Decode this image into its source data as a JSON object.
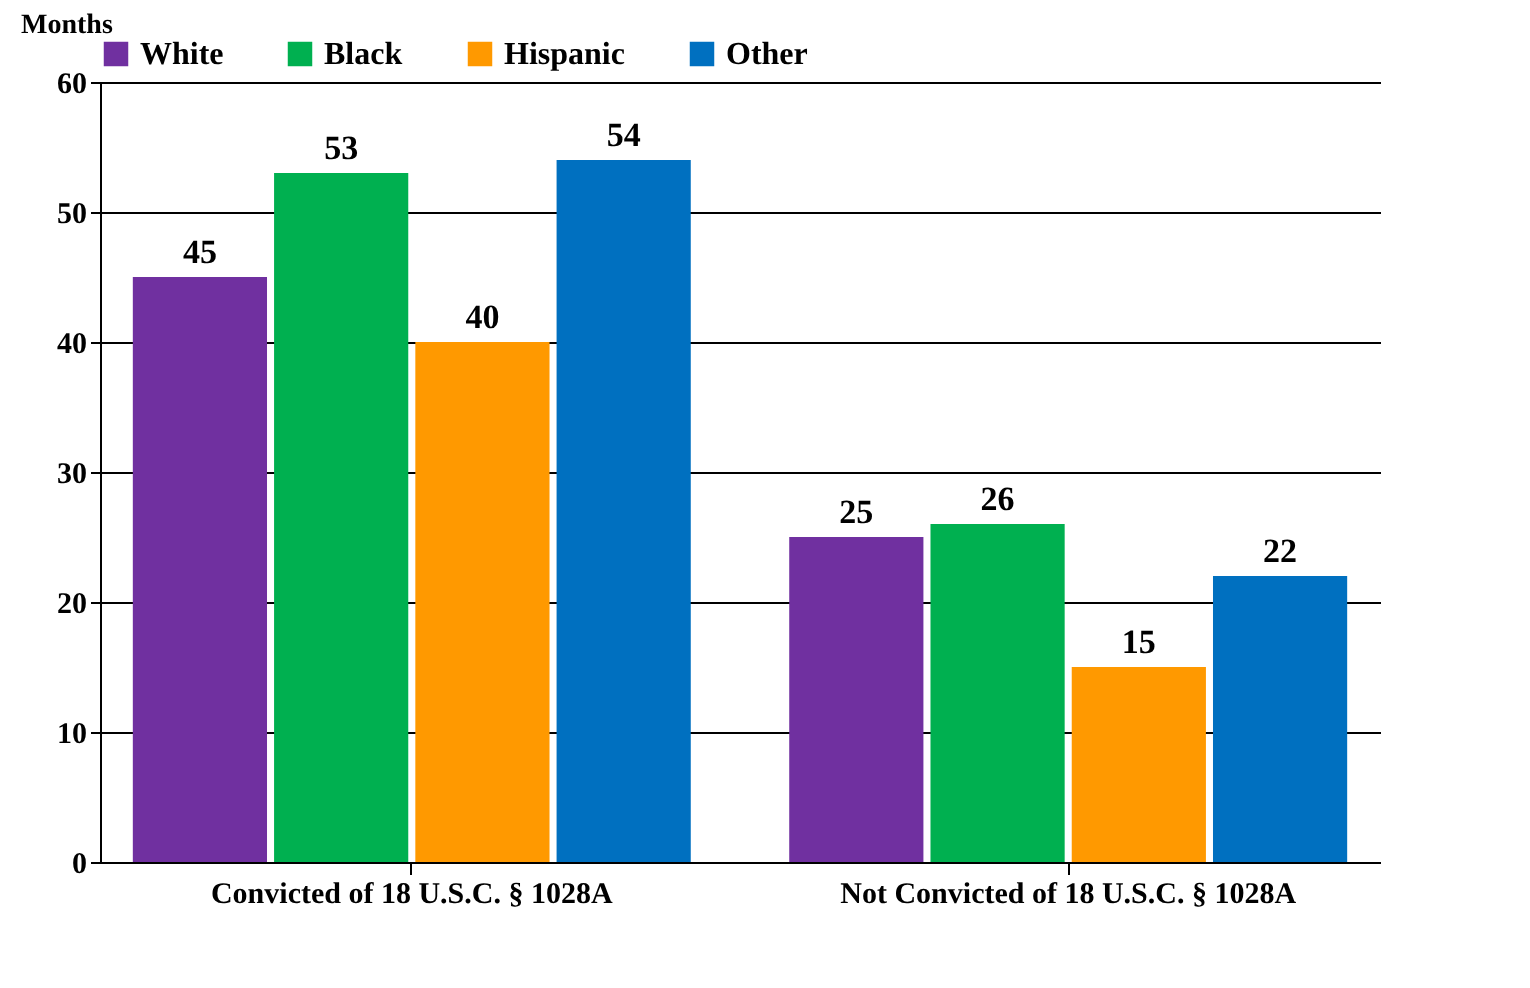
{
  "chart_data": {
    "type": "bar",
    "ylabel": "Months",
    "categories": [
      "Convicted of 18 U.S.C. § 1028A",
      "Not Convicted of 18 U.S.C. § 1028A"
    ],
    "series": [
      {
        "name": "White",
        "color": "#7030a0",
        "values": [
          45,
          25
        ]
      },
      {
        "name": "Black",
        "color": "#00b050",
        "values": [
          53,
          26
        ]
      },
      {
        "name": "Hispanic",
        "color": "#ff9900",
        "values": [
          40,
          15
        ]
      },
      {
        "name": "Other",
        "color": "#0070c0",
        "values": [
          54,
          22
        ]
      }
    ],
    "ylim": [
      0,
      60
    ],
    "yticks": [
      0,
      10,
      20,
      30,
      40,
      50,
      60
    ],
    "grid": "y",
    "legend": "top",
    "data_labels": true
  }
}
